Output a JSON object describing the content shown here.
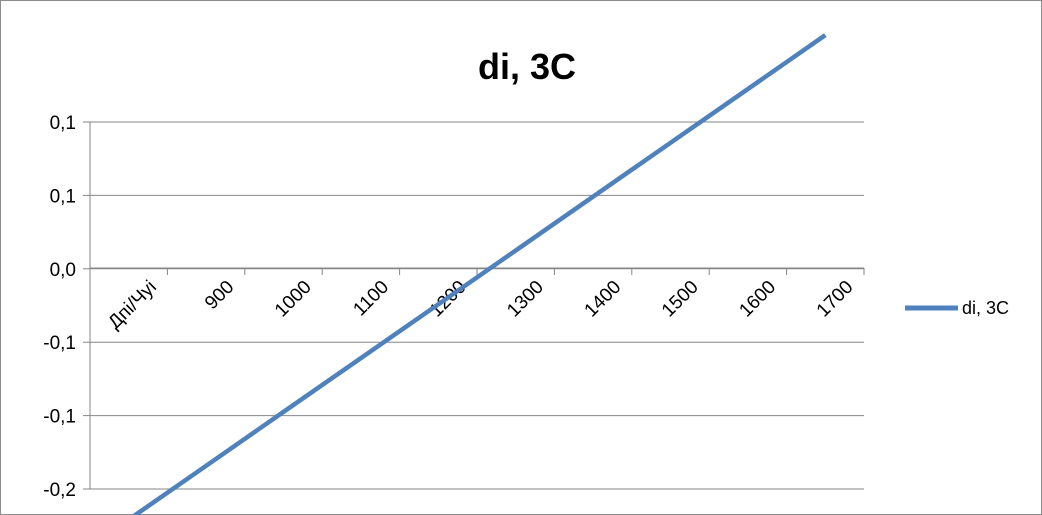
{
  "chart_data": {
    "type": "line",
    "title": "di, 3C",
    "xlabel": "",
    "ylabel": "",
    "categories": [
      "Дпі/Чуі",
      "900",
      "1000",
      "1100",
      "1200",
      "1300",
      "1400",
      "1500",
      "1600",
      "1700"
    ],
    "y_tick_labels": [
      "0,1",
      "0,1",
      "0,0",
      "-0,1",
      "-0,1",
      "-0,2"
    ],
    "ylim": [
      -0.2,
      0.1
    ],
    "series": [
      {
        "name": "di, 3C",
        "color": "#4f81bd",
        "values": [
          -0.225,
          -0.181,
          -0.137,
          -0.093,
          -0.049,
          -0.005,
          0.039,
          0.083,
          0.127,
          0.171
        ]
      }
    ],
    "grid": true,
    "legend": "right"
  }
}
